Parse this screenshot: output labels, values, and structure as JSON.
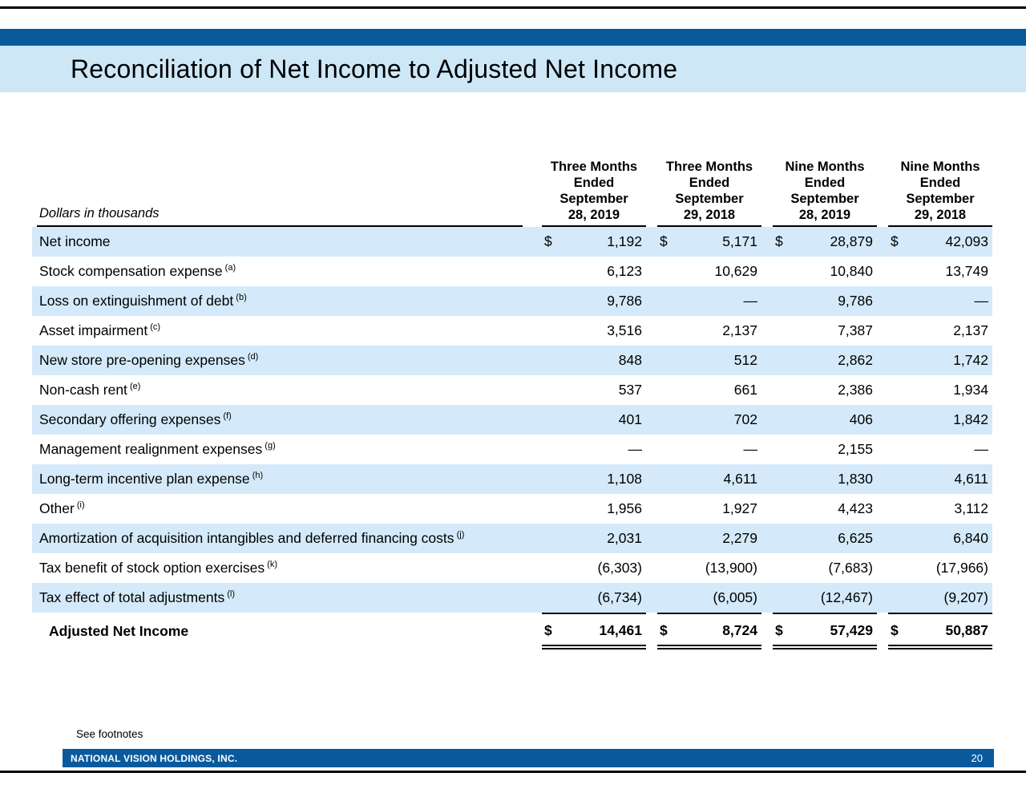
{
  "colors": {
    "accent_bar": "#095a9d",
    "title_band": "#cde7f7",
    "row_highlight": "#d4eafa",
    "rule": "#000000"
  },
  "slide": {
    "title": "Reconciliation of Net Income to Adjusted Net Income",
    "footnote_reference": "See footnotes",
    "company": "NATIONAL VISION HOLDINGS, INC.",
    "page_number": "20"
  },
  "table": {
    "units_label": "Dollars in thousands",
    "currency_symbol": "$",
    "column_headers": [
      {
        "lines": [
          "Three Months",
          "Ended",
          "September",
          "28, 2019"
        ]
      },
      {
        "lines": [
          "Three Months",
          "Ended",
          "September",
          "29, 2018"
        ]
      },
      {
        "lines": [
          "Nine Months",
          "Ended",
          "September",
          "28, 2019"
        ]
      },
      {
        "lines": [
          "Nine Months",
          "Ended",
          "September",
          "29, 2018"
        ]
      }
    ],
    "rows": [
      {
        "label": "Net income",
        "footnote": "",
        "dollar": true,
        "highlight": true,
        "total": false,
        "values": [
          "1,192",
          "5,171",
          "28,879",
          "42,093"
        ]
      },
      {
        "label": "Stock compensation expense",
        "footnote": "(a)",
        "dollar": false,
        "highlight": false,
        "total": false,
        "values": [
          "6,123",
          "10,629",
          "10,840",
          "13,749"
        ]
      },
      {
        "label": "Loss on extinguishment of debt",
        "footnote": "(b)",
        "dollar": false,
        "highlight": true,
        "total": false,
        "values": [
          "9,786",
          "—",
          "9,786",
          "—"
        ]
      },
      {
        "label": "Asset impairment",
        "footnote": "(c)",
        "dollar": false,
        "highlight": false,
        "total": false,
        "values": [
          "3,516",
          "2,137",
          "7,387",
          "2,137"
        ]
      },
      {
        "label": "New store pre-opening expenses",
        "footnote": "(d)",
        "dollar": false,
        "highlight": true,
        "total": false,
        "values": [
          "848",
          "512",
          "2,862",
          "1,742"
        ]
      },
      {
        "label": "Non-cash rent",
        "footnote": "(e)",
        "dollar": false,
        "highlight": false,
        "total": false,
        "values": [
          "537",
          "661",
          "2,386",
          "1,934"
        ]
      },
      {
        "label": "Secondary offering expenses",
        "footnote": "(f)",
        "dollar": false,
        "highlight": true,
        "total": false,
        "values": [
          "401",
          "702",
          "406",
          "1,842"
        ]
      },
      {
        "label": "Management realignment expenses",
        "footnote": "(g)",
        "dollar": false,
        "highlight": false,
        "total": false,
        "values": [
          "—",
          "—",
          "2,155",
          "—"
        ]
      },
      {
        "label": "Long-term incentive plan expense",
        "footnote": "(h)",
        "dollar": false,
        "highlight": true,
        "total": false,
        "values": [
          "1,108",
          "4,611",
          "1,830",
          "4,611"
        ]
      },
      {
        "label": "Other",
        "footnote": "(i)",
        "dollar": false,
        "highlight": false,
        "total": false,
        "values": [
          "1,956",
          "1,927",
          "4,423",
          "3,112"
        ]
      },
      {
        "label": "Amortization of acquisition intangibles and deferred financing costs",
        "footnote": "(j)",
        "dollar": false,
        "highlight": true,
        "total": false,
        "values": [
          "2,031",
          "2,279",
          "6,625",
          "6,840"
        ]
      },
      {
        "label": "Tax benefit of stock option exercises",
        "footnote": "(k)",
        "dollar": false,
        "highlight": false,
        "total": false,
        "values": [
          "(6,303)",
          "(13,900)",
          "(7,683)",
          "(17,966)"
        ]
      },
      {
        "label": "Tax effect of total adjustments",
        "footnote": "(l)",
        "dollar": false,
        "highlight": true,
        "total": false,
        "values": [
          "(6,734)",
          "(6,005)",
          "(12,467)",
          "(9,207)"
        ]
      },
      {
        "label": "Adjusted Net Income",
        "footnote": "",
        "dollar": true,
        "highlight": false,
        "total": true,
        "values": [
          "14,461",
          "8,724",
          "57,429",
          "50,887"
        ]
      }
    ]
  }
}
